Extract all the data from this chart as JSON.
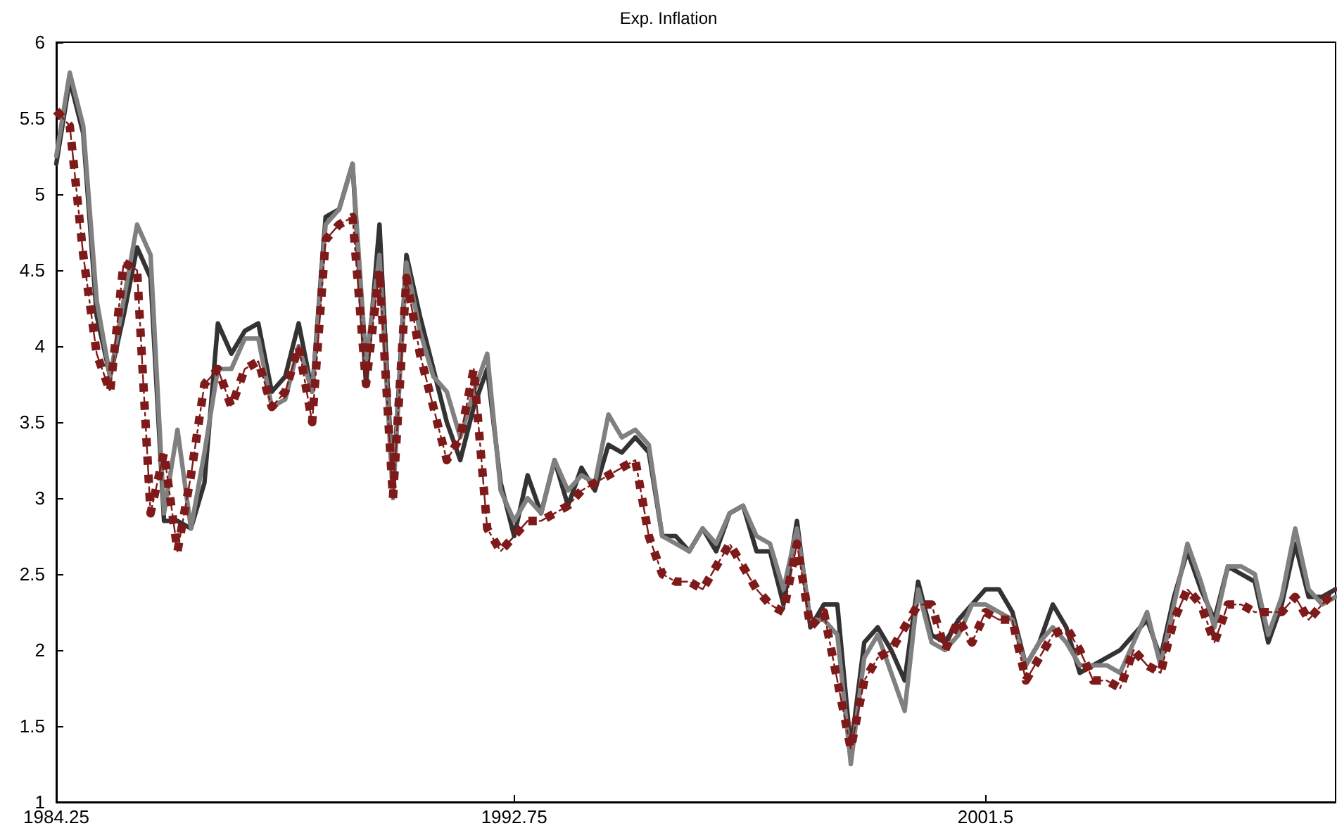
{
  "chart_data": {
    "type": "line",
    "title": "Exp. Inflation",
    "x": [
      1984.25,
      1984.5,
      1984.75,
      1985,
      1985.25,
      1985.5,
      1985.75,
      1986,
      1986.25,
      1986.5,
      1986.75,
      1987,
      1987.25,
      1987.5,
      1987.75,
      1988,
      1988.25,
      1988.5,
      1988.75,
      1989,
      1989.25,
      1989.5,
      1989.75,
      1990,
      1990.25,
      1990.5,
      1990.75,
      1991,
      1991.25,
      1991.5,
      1991.75,
      1992,
      1992.25,
      1992.5,
      1992.75,
      1993,
      1993.25,
      1993.5,
      1993.75,
      1994,
      1994.25,
      1994.5,
      1994.75,
      1995,
      1995.25,
      1995.5,
      1995.75,
      1996,
      1996.25,
      1996.5,
      1996.75,
      1997,
      1997.25,
      1997.5,
      1997.75,
      1998,
      1998.25,
      1998.5,
      1998.75,
      1999,
      1999.25,
      1999.5,
      1999.75,
      2000,
      2000.25,
      2000.5,
      2000.75,
      2001,
      2001.25,
      2001.5,
      2001.75,
      2002,
      2002.25,
      2002.5,
      2002.75,
      2003,
      2003.25,
      2003.5,
      2003.75,
      2004,
      2004.25,
      2004.5,
      2004.75,
      2005,
      2005.25,
      2005.5,
      2005.75,
      2006,
      2006.25,
      2006.5,
      2006.75,
      2007,
      2007.25,
      2007.5,
      2007.75,
      2008
    ],
    "series": [
      {
        "color": "#333333",
        "line_style": "solid",
        "values": [
          5.2,
          5.75,
          5.4,
          4.2,
          3.8,
          4.2,
          4.65,
          4.45,
          2.85,
          2.85,
          2.8,
          3.1,
          4.15,
          3.95,
          4.1,
          4.15,
          3.7,
          3.8,
          4.15,
          3.7,
          4.85,
          4.9,
          5.2,
          3.75,
          4.8,
          3.05,
          4.6,
          4.2,
          3.85,
          3.5,
          3.25,
          3.6,
          3.85,
          3.1,
          2.75,
          3.15,
          2.9,
          3.25,
          2.95,
          3.2,
          3.05,
          3.35,
          3.3,
          3.4,
          3.3,
          2.75,
          2.75,
          2.65,
          2.8,
          2.65,
          2.9,
          2.95,
          2.65,
          2.65,
          2.3,
          2.85,
          2.15,
          2.3,
          2.3,
          1.35,
          2.05,
          2.15,
          2.0,
          1.8,
          2.45,
          2.1,
          2.05,
          2.2,
          2.3,
          2.4,
          2.4,
          2.25,
          1.9,
          2.05,
          2.3,
          2.15,
          1.85,
          1.9,
          1.95,
          2.0,
          2.1,
          2.2,
          1.95,
          2.35,
          2.65,
          2.4,
          2.2,
          2.55,
          2.5,
          2.45,
          2.05,
          2.3,
          2.7,
          2.35,
          2.35,
          2.4
        ]
      },
      {
        "color": "#808080",
        "line_style": "solid",
        "values": [
          5.25,
          5.8,
          5.45,
          4.3,
          3.8,
          4.3,
          4.8,
          4.6,
          2.9,
          3.45,
          2.8,
          3.3,
          3.85,
          3.85,
          4.05,
          4.05,
          3.6,
          3.65,
          4.0,
          3.7,
          4.8,
          4.9,
          5.2,
          3.9,
          4.6,
          3.0,
          4.55,
          4.1,
          3.8,
          3.7,
          3.4,
          3.7,
          3.95,
          3.05,
          2.85,
          3.0,
          2.9,
          3.25,
          3.05,
          3.15,
          3.1,
          3.55,
          3.4,
          3.45,
          3.35,
          2.75,
          2.7,
          2.65,
          2.8,
          2.7,
          2.9,
          2.95,
          2.75,
          2.7,
          2.4,
          2.8,
          2.2,
          2.2,
          2.1,
          1.25,
          1.95,
          2.1,
          1.85,
          1.6,
          2.4,
          2.05,
          2.0,
          2.1,
          2.3,
          2.3,
          2.25,
          2.2,
          1.9,
          2.05,
          2.15,
          2.05,
          1.9,
          1.9,
          1.9,
          1.85,
          2.05,
          2.25,
          1.9,
          2.3,
          2.7,
          2.45,
          2.15,
          2.55,
          2.55,
          2.5,
          2.1,
          2.35,
          2.8,
          2.4,
          2.3,
          2.35
        ]
      },
      {
        "color": "#7f1a1a",
        "line_style": "dotted",
        "values": [
          5.55,
          5.45,
          4.6,
          3.95,
          3.7,
          4.55,
          4.5,
          2.9,
          3.3,
          2.65,
          3.15,
          3.75,
          3.85,
          3.6,
          3.85,
          3.9,
          3.6,
          3.7,
          4.0,
          3.5,
          4.7,
          4.8,
          4.85,
          3.75,
          4.5,
          3.0,
          4.45,
          3.95,
          3.6,
          3.25,
          3.4,
          3.85,
          2.8,
          2.65,
          2.75,
          2.85,
          2.85,
          2.9,
          2.95,
          3.05,
          3.1,
          3.15,
          3.2,
          3.25,
          2.75,
          2.5,
          2.45,
          2.45,
          2.4,
          2.55,
          2.7,
          2.55,
          2.4,
          2.3,
          2.25,
          2.7,
          2.15,
          2.25,
          1.8,
          1.35,
          1.8,
          1.95,
          2.0,
          2.15,
          2.3,
          2.3,
          2.0,
          2.2,
          2.05,
          2.25,
          2.2,
          2.2,
          1.8,
          1.95,
          2.1,
          2.15,
          2.0,
          1.8,
          1.8,
          1.75,
          2.0,
          1.9,
          1.85,
          2.2,
          2.4,
          2.3,
          2.05,
          2.3,
          2.3,
          2.25,
          2.25,
          2.25,
          2.35,
          2.2,
          2.3,
          2.4
        ]
      },
      {
        "color": "#7f1a1a",
        "line_style": "dashed",
        "values": [
          5.55,
          5.45,
          4.6,
          3.95,
          3.7,
          4.55,
          4.5,
          2.9,
          3.3,
          2.65,
          3.15,
          3.75,
          3.85,
          3.6,
          3.85,
          3.9,
          3.6,
          3.7,
          4.0,
          3.5,
          4.7,
          4.8,
          4.85,
          3.75,
          4.5,
          3.0,
          4.45,
          3.95,
          3.6,
          3.25,
          3.4,
          3.85,
          2.8,
          2.65,
          2.75,
          2.85,
          2.85,
          2.9,
          2.95,
          3.05,
          3.1,
          3.15,
          3.2,
          3.25,
          2.75,
          2.5,
          2.45,
          2.45,
          2.4,
          2.55,
          2.7,
          2.55,
          2.4,
          2.3,
          2.25,
          2.7,
          2.15,
          2.25,
          1.8,
          1.35,
          1.8,
          1.95,
          2.0,
          2.15,
          2.3,
          2.3,
          2.0,
          2.2,
          2.05,
          2.25,
          2.2,
          2.2,
          1.8,
          1.95,
          2.1,
          2.15,
          2.0,
          1.8,
          1.8,
          1.75,
          2.0,
          1.9,
          1.85,
          2.2,
          2.4,
          2.3,
          2.05,
          2.3,
          2.3,
          2.25,
          2.25,
          2.25,
          2.35,
          2.2,
          2.3,
          2.4
        ]
      }
    ],
    "xlim": [
      1984.25,
      2008
    ],
    "xticks": [
      1984.25,
      1992.75,
      2001.5
    ],
    "ylim": [
      1,
      6
    ],
    "yticks": [
      1,
      1.5,
      2,
      2.5,
      3,
      3.5,
      4,
      4.5,
      5,
      5.5,
      6
    ],
    "grid": false,
    "marker": "none"
  }
}
